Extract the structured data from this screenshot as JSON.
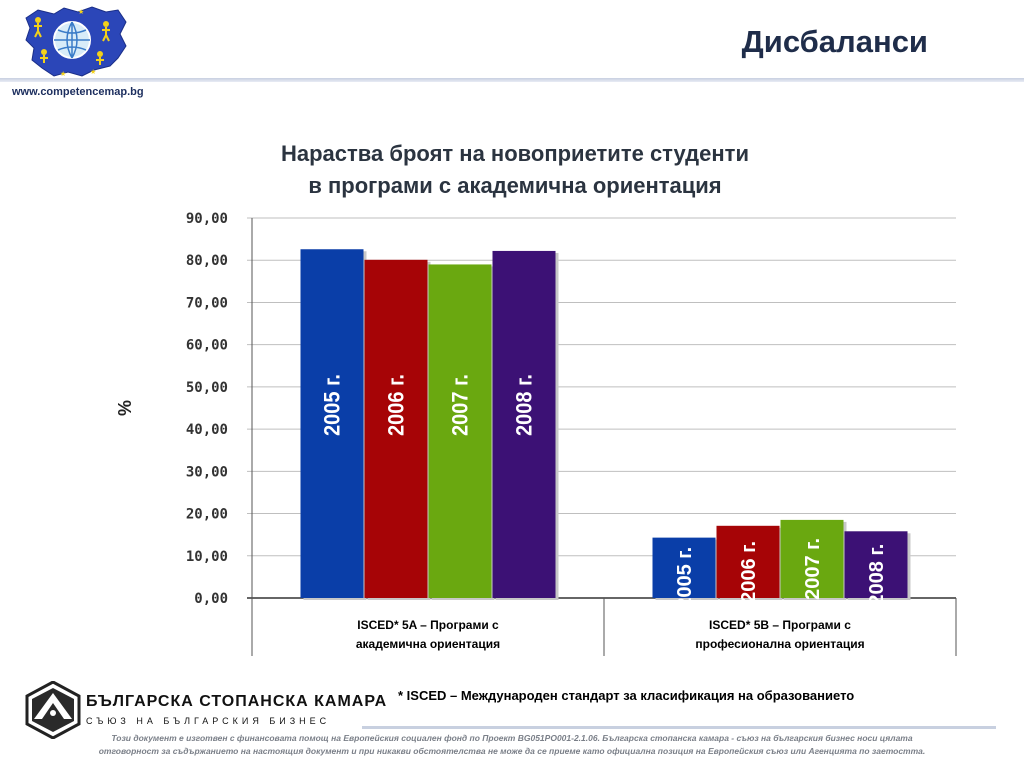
{
  "header": {
    "title": "Дисбаланси",
    "url": "www.competencemap.bg"
  },
  "chart": {
    "title_line1": "Нараства броят на новоприетите студенти",
    "title_line2": "в програми с академична ориентация"
  },
  "chart_data": {
    "type": "bar",
    "title": "Нараства броят на новоприетите студенти в програми с академична ориентация",
    "ylabel": "%",
    "ylim": [
      0,
      90
    ],
    "yticks": [
      "0,00",
      "10,00",
      "20,00",
      "30,00",
      "40,00",
      "50,00",
      "60,00",
      "70,00",
      "80,00",
      "90,00"
    ],
    "grid": true,
    "categories": [
      "ISCED* 5A – Програми с академична ориентация",
      "ISCED* 5B – Програми с професионална ориентация"
    ],
    "category_lines": [
      [
        "ISCED* 5A – Програми с",
        "академична ориентация"
      ],
      [
        "ISCED* 5B – Програми с",
        "професионална ориентация"
      ]
    ],
    "series": [
      {
        "name": "2005 г.",
        "color": "#0a3ea8",
        "values": [
          82.6,
          14.3
        ]
      },
      {
        "name": "2006 г.",
        "color": "#a60406",
        "values": [
          80.1,
          17.1
        ]
      },
      {
        "name": "2007 г.",
        "color": "#6aa810",
        "values": [
          79.0,
          18.5
        ]
      },
      {
        "name": "2008 г.",
        "color": "#3c1175",
        "values": [
          82.2,
          15.8
        ]
      }
    ]
  },
  "footer": {
    "footnote": "* ISCED – Международен стандарт за класификация на образованието",
    "org_name": "БЪЛГАРСКА СТОПАНСКА КАМАРА",
    "org_sub": "СЪЮЗ НА БЪЛГАРСКИЯ БИЗНЕС",
    "disclaimer_line1": "Този документ е изготвен с финансовата помощ на Европейския социален фонд по Проект BG051PO001-2.1.06. Българска стопанска камара - съюз на българския бизнес носи цялата",
    "disclaimer_line2": "отговорност за съдържанието на настоящия документ и при никакви обстоятелства не може да се приеме като официална позиция на Европейския съюз или Агенцията по заетостта."
  }
}
